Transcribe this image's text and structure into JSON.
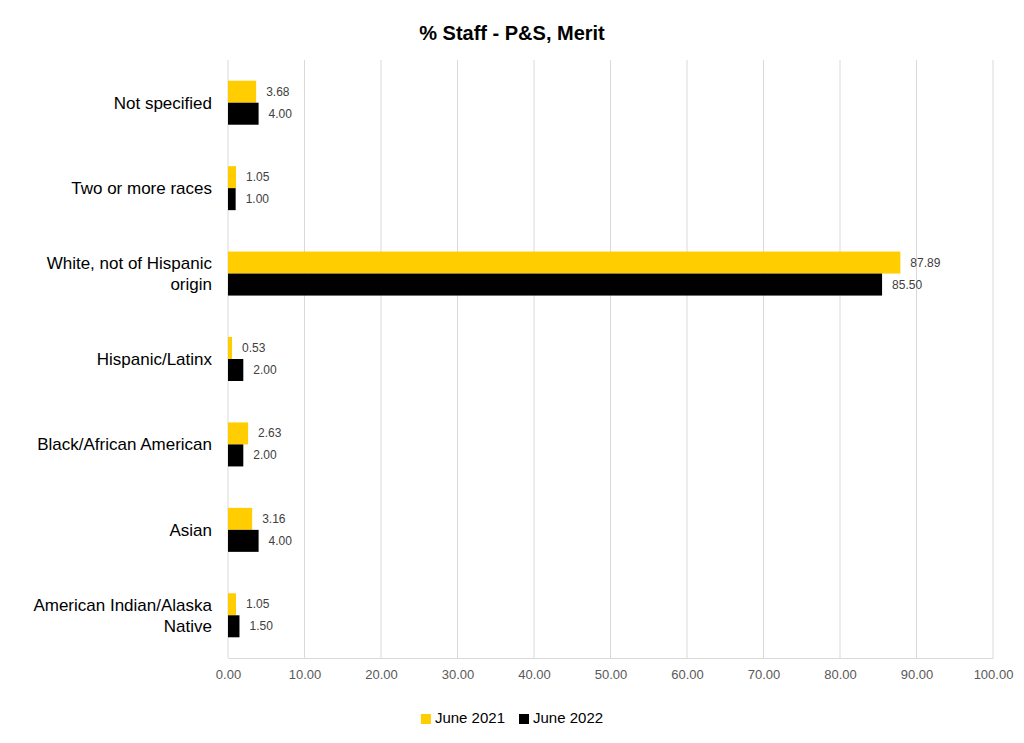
{
  "chart_data": {
    "type": "bar",
    "orientation": "horizontal",
    "title": "% Staff - P&S, Merit",
    "categories": [
      "Not specified",
      "Two or more races",
      "White, not of Hispanic origin",
      "Hispanic/Latinx",
      "Black/African American",
      "Asian",
      "American Indian/Alaska Native"
    ],
    "series": [
      {
        "name": "June 2021",
        "color": "#ffcd00",
        "values": [
          3.68,
          1.05,
          87.89,
          0.53,
          2.63,
          3.16,
          1.05
        ],
        "value_labels": [
          "3.68",
          "1.05",
          "87.89",
          "0.53",
          "2.63",
          "3.16",
          "1.05"
        ]
      },
      {
        "name": "June 2022",
        "color": "#000000",
        "values": [
          4,
          1,
          85.5,
          2,
          2,
          4,
          1.5
        ],
        "value_labels": [
          "4.00",
          "1.00",
          "85.50",
          "2.00",
          "2.00",
          "4.00",
          "1.50"
        ]
      }
    ],
    "xlim": [
      0,
      100
    ],
    "xticks": [
      {
        "value": 0,
        "label": "0.00"
      },
      {
        "value": 10,
        "label": "10.00"
      },
      {
        "value": 20,
        "label": "20.00"
      },
      {
        "value": 30,
        "label": "30.00"
      },
      {
        "value": 40,
        "label": "40.00"
      },
      {
        "value": 50,
        "label": "50.00"
      },
      {
        "value": 60,
        "label": "60.00"
      },
      {
        "value": 70,
        "label": "70.00"
      },
      {
        "value": 80,
        "label": "80.00"
      },
      {
        "value": 90,
        "label": "90.00"
      },
      {
        "value": 100,
        "label": "100.00"
      }
    ],
    "grid": true,
    "data_labels": true,
    "legend": "bottom"
  }
}
